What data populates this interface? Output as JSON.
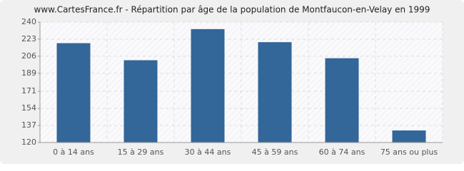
{
  "chart_data": {
    "type": "bar",
    "title": "www.CartesFrance.fr - Répartition par âge de la population de Montfaucon-en-Velay en 1999",
    "categories": [
      "0 à 14 ans",
      "15 à 29 ans",
      "30 à 44 ans",
      "45 à 59 ans",
      "60 à 74 ans",
      "75 ans ou plus"
    ],
    "values": [
      219,
      202,
      233,
      220,
      204,
      132
    ],
    "color": "#336699",
    "ylim": [
      120,
      240
    ],
    "yticks": [
      120,
      137,
      154,
      171,
      189,
      206,
      223,
      240
    ],
    "grid": true
  }
}
